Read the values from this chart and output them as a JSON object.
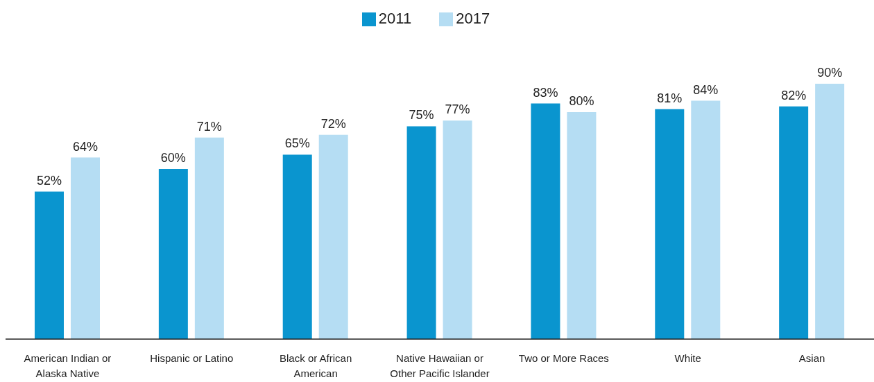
{
  "chart_data": {
    "type": "bar",
    "categories": [
      "American Indian or Alaska Native",
      "Hispanic or Latino",
      "Black or African American",
      "Native Hawaiian or Other Pacific Islander",
      "Two or More Races",
      "White",
      "Asian"
    ],
    "series": [
      {
        "name": "2011",
        "color": "#0a95cf",
        "values": [
          52,
          60,
          65,
          75,
          83,
          81,
          82
        ],
        "value_labels": [
          "52%",
          "60%",
          "65%",
          "75%",
          "83%",
          "81%",
          "82%"
        ]
      },
      {
        "name": "2017",
        "color": "#b5ddf3",
        "values": [
          64,
          71,
          72,
          77,
          80,
          84,
          90
        ],
        "value_labels": [
          "64%",
          "71%",
          "72%",
          "77%",
          "80%",
          "84%",
          "90%"
        ]
      }
    ],
    "legend": "top",
    "grid": false
  }
}
